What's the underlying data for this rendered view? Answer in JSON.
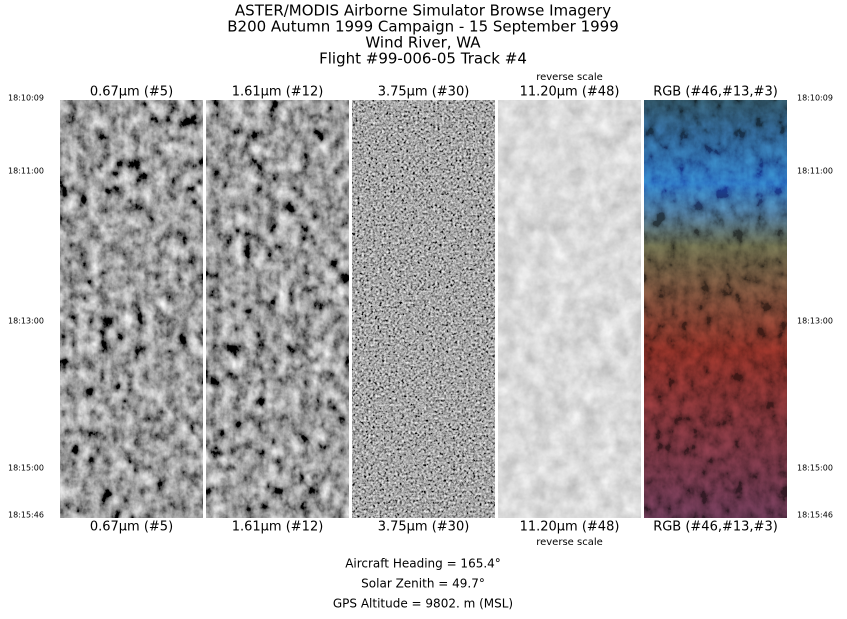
{
  "header": {
    "lines": [
      "ASTER/MODIS Airborne Simulator Browse Imagery",
      "B200 Autumn 1999 Campaign - 15 September 1999",
      "Wind River, WA",
      "Flight #99-006-05 Track #4"
    ]
  },
  "panels": [
    {
      "label": "0.67μm (#5)"
    },
    {
      "label": "1.61μm (#12)"
    },
    {
      "label": "3.75μm (#30)"
    },
    {
      "label": "11.20μm (#48)",
      "note": "reverse scale"
    },
    {
      "label": "RGB (#46,#13,#3)"
    }
  ],
  "times": [
    "18:10:09",
    "18:11:00",
    "18:13:00",
    "18:15:00",
    "18:15:46"
  ],
  "footer": {
    "lines": [
      "Aircraft Heading =  165.4°",
      "Solar Zenith =   49.7°",
      "GPS Altitude =   9802. m (MSL)"
    ]
  }
}
